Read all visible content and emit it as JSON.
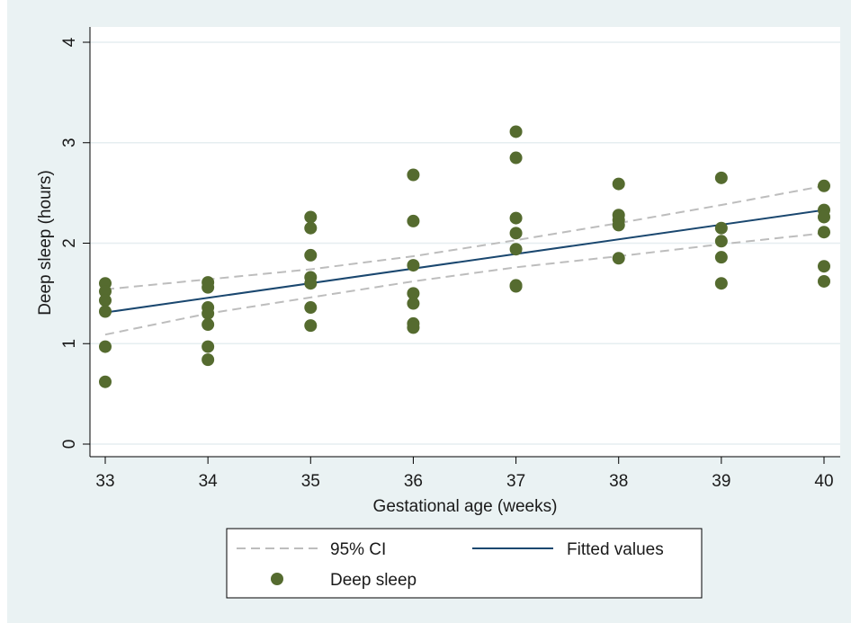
{
  "chart_data": {
    "type": "scatter",
    "xlabel": "Gestational age (weeks)",
    "ylabel": "Deep sleep (hours)",
    "xlim": [
      33,
      40
    ],
    "ylim": [
      0,
      4
    ],
    "x_ticks": [
      33,
      34,
      35,
      36,
      37,
      38,
      39,
      40
    ],
    "y_ticks": [
      0,
      1,
      2,
      3,
      4
    ],
    "grid": true,
    "legend_position": "bottom",
    "colors": {
      "outer_background": "#eaf2f3",
      "plot_background": "#ffffff",
      "grid": "#e6eef0",
      "points": "#556b2f",
      "fitted": "#1a476f",
      "ci": "#bdbdbd"
    },
    "legend": {
      "ci_label": "95% CI",
      "fitted_label": "Fitted values",
      "points_label": "Deep sleep"
    },
    "series": [
      {
        "name": "Deep sleep",
        "kind": "points",
        "points": [
          [
            33,
            1.6
          ],
          [
            33,
            1.52
          ],
          [
            33,
            1.43
          ],
          [
            33,
            1.32
          ],
          [
            33,
            0.97
          ],
          [
            33,
            0.62
          ],
          [
            34,
            1.61
          ],
          [
            34,
            1.56
          ],
          [
            34,
            1.36
          ],
          [
            34,
            1.3
          ],
          [
            34,
            1.19
          ],
          [
            34,
            0.97
          ],
          [
            34,
            0.84
          ],
          [
            35,
            2.26
          ],
          [
            35,
            2.15
          ],
          [
            35,
            1.88
          ],
          [
            35,
            1.66
          ],
          [
            35,
            1.6
          ],
          [
            35,
            1.36
          ],
          [
            35,
            1.18
          ],
          [
            36,
            2.68
          ],
          [
            36,
            2.22
          ],
          [
            36,
            1.78
          ],
          [
            36,
            1.5
          ],
          [
            36,
            1.4
          ],
          [
            36,
            1.2
          ],
          [
            36,
            1.16
          ],
          [
            37,
            3.11
          ],
          [
            37,
            2.85
          ],
          [
            37,
            2.25
          ],
          [
            37,
            2.1
          ],
          [
            37,
            1.94
          ],
          [
            37,
            1.58
          ],
          [
            37,
            1.57
          ],
          [
            38,
            2.59
          ],
          [
            38,
            2.28
          ],
          [
            38,
            2.23
          ],
          [
            38,
            2.18
          ],
          [
            38,
            1.85
          ],
          [
            39,
            2.65
          ],
          [
            39,
            2.15
          ],
          [
            39,
            2.02
          ],
          [
            39,
            1.86
          ],
          [
            39,
            1.6
          ],
          [
            40,
            2.57
          ],
          [
            40,
            2.33
          ],
          [
            40,
            2.26
          ],
          [
            40,
            2.11
          ],
          [
            40,
            1.77
          ],
          [
            40,
            1.62
          ]
        ]
      },
      {
        "name": "Fitted values",
        "kind": "line",
        "points": [
          [
            33,
            1.31
          ],
          [
            40,
            2.33
          ]
        ]
      },
      {
        "name": "95% CI",
        "kind": "dashed-band",
        "upper": [
          [
            33,
            1.54
          ],
          [
            35,
            1.74
          ],
          [
            36,
            1.87
          ],
          [
            37,
            2.03
          ],
          [
            38,
            2.2
          ],
          [
            39,
            2.38
          ],
          [
            40,
            2.57
          ]
        ],
        "lower": [
          [
            33,
            1.09
          ],
          [
            34,
            1.3
          ],
          [
            35,
            1.46
          ],
          [
            36,
            1.62
          ],
          [
            37,
            1.76
          ],
          [
            38,
            1.87
          ],
          [
            39,
            1.99
          ],
          [
            40,
            2.1
          ]
        ]
      }
    ]
  }
}
